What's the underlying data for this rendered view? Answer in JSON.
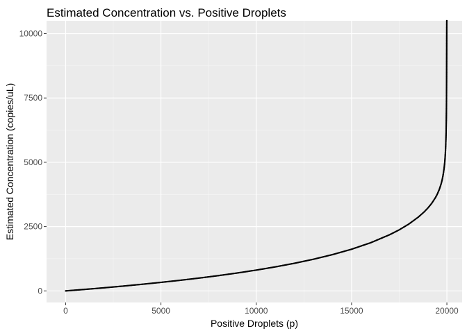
{
  "chart_data": {
    "type": "scatter",
    "title": "Estimated Concentration vs. Positive Droplets",
    "xlabel": "Positive Droplets (p)",
    "ylabel": "Estimated Concentration (copies/uL)",
    "xlim": [
      -1000,
      20800
    ],
    "ylim": [
      -450,
      10500
    ],
    "x_ticks": [
      0,
      5000,
      10000,
      15000,
      20000
    ],
    "x_tick_labels": [
      "0",
      "5000",
      "10000",
      "15000",
      "20000"
    ],
    "y_ticks": [
      0,
      2500,
      5000,
      7500,
      10000
    ],
    "y_tick_labels": [
      "0",
      "2500",
      "5000",
      "7500",
      "10000"
    ],
    "grid": true,
    "legend": "none",
    "point_color": "#000000",
    "panel_background": "#ebebeb",
    "series": [
      {
        "x": [
          0,
          1000,
          2000,
          3000,
          4000,
          5000,
          6000,
          7000,
          8000,
          9000,
          10000,
          11000,
          12000,
          13000,
          14000,
          15000,
          16000,
          17000,
          17500,
          18000,
          18500,
          18800,
          19000,
          19200,
          19400,
          19500,
          19600,
          19700,
          19750,
          19800,
          19850,
          19880,
          19900,
          19920,
          19940,
          19950,
          19960,
          19970,
          19975,
          19980,
          19985,
          19990,
          19993,
          19995,
          19997,
          19998,
          19999
        ],
        "y": [
          0,
          58,
          120,
          186,
          257,
          332,
          412,
          499,
          593,
          696,
          809,
          934,
          1073,
          1231,
          1411,
          1620,
          1872,
          2185,
          2374,
          2597,
          2869,
          3066,
          3220,
          3400,
          3626,
          3766,
          3940,
          4164,
          4310,
          4496,
          4741,
          4942,
          5113,
          5337,
          5661,
          5890,
          6193,
          6641,
          6972,
          7438,
          8148,
          9400,
          10340,
          10500,
          10500,
          10500,
          10500
        ]
      }
    ]
  }
}
